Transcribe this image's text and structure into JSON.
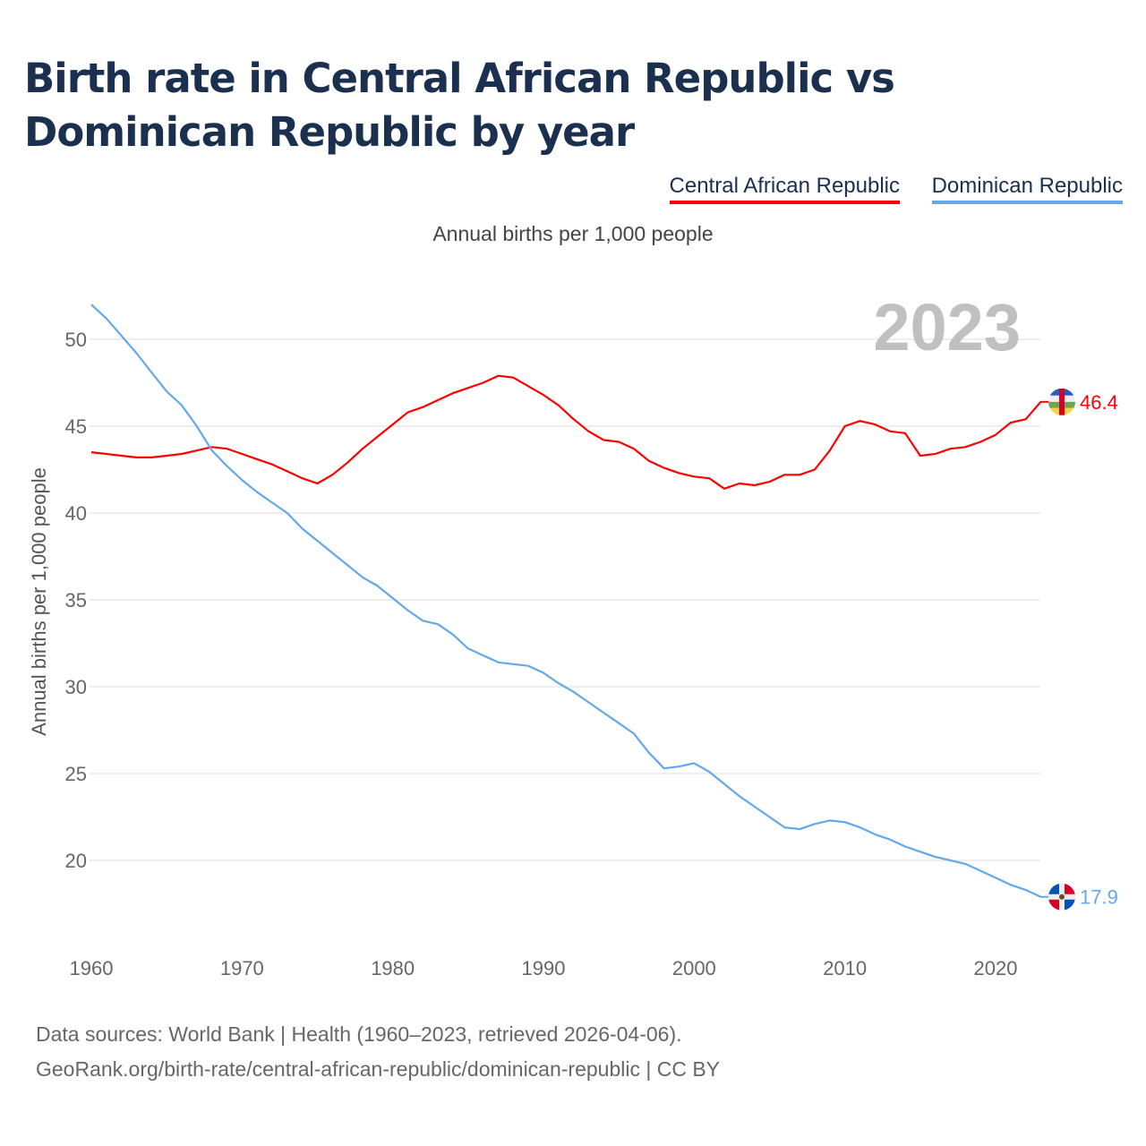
{
  "title": "Birth rate in Central African Republic vs Dominican Republic by year",
  "subtitle": "Annual births per 1,000 people",
  "footer": {
    "line1": "Data sources: World Bank | Health (1960–2023, retrieved 2026-04-06).",
    "line2": "GeoRank.org/birth-rate/central-african-republic/dominican-republic | CC BY"
  },
  "chart_data": {
    "type": "line",
    "title": "Birth rate in Central African Republic vs Dominican Republic by year",
    "ylabel": "Annual births per 1,000 people",
    "xlabel": "",
    "year_label": "2023",
    "xlim": [
      1960,
      2023
    ],
    "ylim": [
      17,
      53
    ],
    "xticks": [
      1960,
      1970,
      1980,
      1990,
      2000,
      2010,
      2020
    ],
    "yticks": [
      20,
      25,
      30,
      35,
      40,
      45,
      50
    ],
    "legend_position": "top-right",
    "grid": true,
    "x": [
      1960,
      1961,
      1962,
      1963,
      1964,
      1965,
      1966,
      1967,
      1968,
      1969,
      1970,
      1971,
      1972,
      1973,
      1974,
      1975,
      1976,
      1977,
      1978,
      1979,
      1980,
      1981,
      1982,
      1983,
      1984,
      1985,
      1986,
      1987,
      1988,
      1989,
      1990,
      1991,
      1992,
      1993,
      1994,
      1995,
      1996,
      1997,
      1998,
      1999,
      2000,
      2001,
      2002,
      2003,
      2004,
      2005,
      2006,
      2007,
      2008,
      2009,
      2010,
      2011,
      2012,
      2013,
      2014,
      2015,
      2016,
      2017,
      2018,
      2019,
      2020,
      2021,
      2022,
      2023
    ],
    "series": [
      {
        "name": "Central African Republic",
        "color": "#ff0000",
        "end_label": "46.4",
        "values": [
          43.5,
          43.4,
          43.3,
          43.2,
          43.2,
          43.3,
          43.4,
          43.6,
          43.8,
          43.7,
          43.4,
          43.1,
          42.8,
          42.4,
          42.0,
          41.7,
          42.2,
          42.9,
          43.7,
          44.4,
          45.1,
          45.8,
          46.1,
          46.5,
          46.9,
          47.2,
          47.5,
          47.9,
          47.8,
          47.3,
          46.8,
          46.2,
          45.4,
          44.7,
          44.2,
          44.1,
          43.7,
          43.0,
          42.6,
          42.3,
          42.1,
          42.0,
          41.4,
          41.7,
          41.6,
          41.8,
          42.2,
          42.2,
          42.5,
          43.6,
          45.0,
          45.3,
          45.1,
          44.7,
          44.6,
          43.3,
          43.4,
          43.7,
          43.8,
          44.1,
          44.5,
          45.2,
          45.4,
          46.4
        ]
      },
      {
        "name": "Dominican Republic",
        "color": "#62a8ea",
        "end_label": "17.9",
        "values": [
          52.0,
          51.2,
          50.2,
          49.2,
          48.1,
          47.0,
          46.2,
          45.0,
          43.6,
          42.7,
          41.9,
          41.2,
          40.6,
          40.0,
          39.1,
          38.4,
          37.7,
          37.0,
          36.3,
          35.8,
          35.1,
          34.4,
          33.8,
          33.6,
          33.0,
          32.2,
          31.8,
          31.4,
          31.3,
          31.2,
          30.8,
          30.2,
          29.7,
          29.1,
          28.5,
          27.9,
          27.3,
          26.2,
          25.3,
          25.4,
          25.6,
          25.1,
          24.4,
          23.7,
          23.1,
          22.5,
          21.9,
          21.8,
          22.1,
          22.3,
          22.2,
          21.9,
          21.5,
          21.2,
          20.8,
          20.5,
          20.2,
          20.0,
          19.8,
          19.4,
          19.0,
          18.6,
          18.3,
          17.9
        ]
      }
    ]
  }
}
